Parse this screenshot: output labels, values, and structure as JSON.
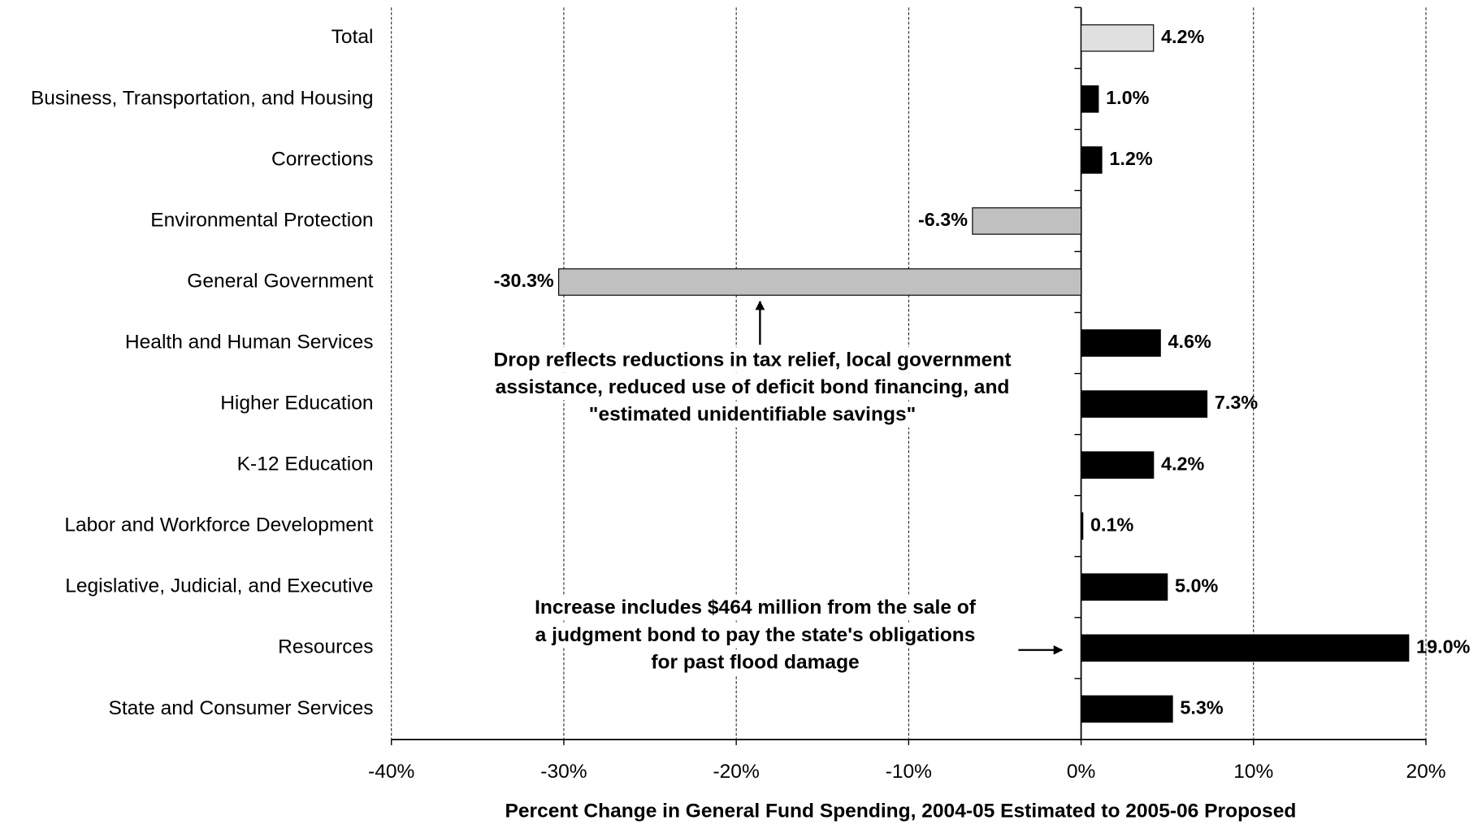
{
  "chart_data": {
    "type": "bar",
    "orientation": "horizontal",
    "x_label": "Percent Change in General Fund Spending, 2004-05 Estimated to 2005-06 Proposed",
    "categories": [
      "Total",
      "Business, Transportation, and Housing",
      "Corrections",
      "Environmental Protection",
      "General Government",
      "Health and Human Services",
      "Higher Education",
      "K-12 Education",
      "Labor and Workforce Development",
      "Legislative, Judicial, and Executive",
      "Resources",
      "State and Consumer Services"
    ],
    "values": [
      4.2,
      1.0,
      1.2,
      -6.3,
      -30.3,
      4.6,
      7.3,
      4.2,
      0.1,
      5.0,
      19.0,
      5.3
    ],
    "value_labels": [
      "4.2%",
      "1.0%",
      "1.2%",
      "-6.3%",
      "-30.3%",
      "4.6%",
      "7.3%",
      "4.2%",
      "0.1%",
      "5.0%",
      "19.0%",
      "5.3%"
    ],
    "colors": [
      "#e0e0e0",
      "#000000",
      "#000000",
      "#c0c0c0",
      "#c0c0c0",
      "#000000",
      "#000000",
      "#000000",
      "#000000",
      "#000000",
      "#000000",
      "#000000"
    ],
    "xlim": [
      -40,
      20
    ],
    "xticks": [
      {
        "value": -40,
        "label": "-40%"
      },
      {
        "value": -30,
        "label": "-30%"
      },
      {
        "value": -20,
        "label": "-20%"
      },
      {
        "value": -10,
        "label": "-10%"
      },
      {
        "value": 0,
        "label": "0%"
      },
      {
        "value": 10,
        "label": "10%"
      },
      {
        "value": 20,
        "label": "20%"
      }
    ],
    "grid": true,
    "annotations": [
      {
        "lines": [
          "Drop reflects reductions in tax relief, local government",
          "assistance, reduced use of deficit bond financing, and",
          "\"estimated unidentifiable savings\""
        ]
      },
      {
        "lines": [
          "Increase includes $464 million from the sale of",
          "a judgment bond to pay the state's obligations",
          "for past flood damage"
        ]
      }
    ]
  }
}
